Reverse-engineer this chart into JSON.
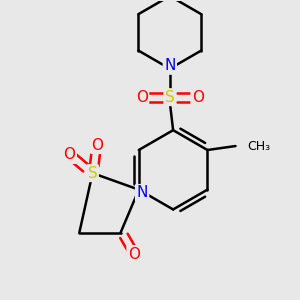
{
  "background_color": "#e8e8e8",
  "bond_color": "#000000",
  "atom_colors": {
    "N": "#0000ff",
    "S": "#cccc00",
    "O": "#ff0000",
    "C": "#000000"
  },
  "figsize": [
    3.0,
    3.0
  ],
  "dpi": 100
}
